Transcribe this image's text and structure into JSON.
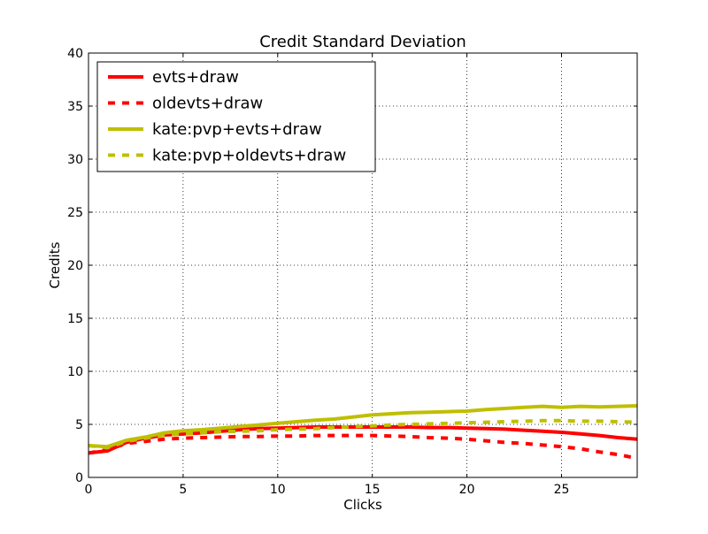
{
  "chart_data": {
    "type": "line",
    "title": "Credit Standard Deviation",
    "xlabel": "Clicks",
    "ylabel": "Credits",
    "xlim": [
      0,
      29
    ],
    "ylim": [
      0,
      40
    ],
    "xticks": [
      0,
      5,
      10,
      15,
      20,
      25
    ],
    "yticks": [
      0,
      5,
      10,
      15,
      20,
      25,
      30,
      35,
      40
    ],
    "grid": true,
    "legend_position": "top-left",
    "x": [
      0,
      1,
      2,
      3,
      4,
      5,
      6,
      7,
      8,
      9,
      10,
      11,
      12,
      13,
      14,
      15,
      16,
      17,
      18,
      19,
      20,
      21,
      22,
      23,
      24,
      25,
      26,
      27,
      28,
      29
    ],
    "series": [
      {
        "name": "evts+draw",
        "color": "#ff0000",
        "style": "solid",
        "values": [
          2.3,
          2.5,
          3.3,
          3.7,
          4.0,
          4.1,
          4.2,
          4.35,
          4.5,
          4.6,
          4.65,
          4.7,
          4.75,
          4.75,
          4.75,
          4.75,
          4.75,
          4.75,
          4.7,
          4.7,
          4.65,
          4.6,
          4.55,
          4.45,
          4.35,
          4.25,
          4.1,
          3.95,
          3.75,
          3.6
        ]
      },
      {
        "name": "oldevts+draw",
        "color": "#ff0000",
        "style": "dashed",
        "values": [
          2.3,
          2.6,
          3.2,
          3.4,
          3.6,
          3.7,
          3.75,
          3.8,
          3.85,
          3.85,
          3.9,
          3.9,
          3.95,
          3.95,
          3.95,
          3.95,
          3.9,
          3.85,
          3.75,
          3.7,
          3.6,
          3.45,
          3.3,
          3.2,
          3.05,
          2.9,
          2.7,
          2.4,
          2.15,
          1.8
        ]
      },
      {
        "name": "kate:pvp+evts+draw",
        "color": "#bfbf00",
        "style": "solid",
        "values": [
          3.0,
          2.9,
          3.5,
          3.8,
          4.2,
          4.4,
          4.5,
          4.65,
          4.8,
          4.95,
          5.1,
          5.25,
          5.4,
          5.5,
          5.7,
          5.9,
          6.0,
          6.1,
          6.15,
          6.2,
          6.25,
          6.4,
          6.5,
          6.6,
          6.7,
          6.6,
          6.7,
          6.65,
          6.7,
          6.75
        ]
      },
      {
        "name": "kate:pvp+oldevts+draw",
        "color": "#bfbf00",
        "style": "dashed",
        "values": [
          3.0,
          2.8,
          3.4,
          3.7,
          4.0,
          4.1,
          4.2,
          4.3,
          4.35,
          4.4,
          4.5,
          4.55,
          4.6,
          4.7,
          4.8,
          4.85,
          4.95,
          5.0,
          5.05,
          5.1,
          5.15,
          5.2,
          5.25,
          5.3,
          5.35,
          5.35,
          5.3,
          5.3,
          5.25,
          5.2
        ]
      }
    ]
  }
}
